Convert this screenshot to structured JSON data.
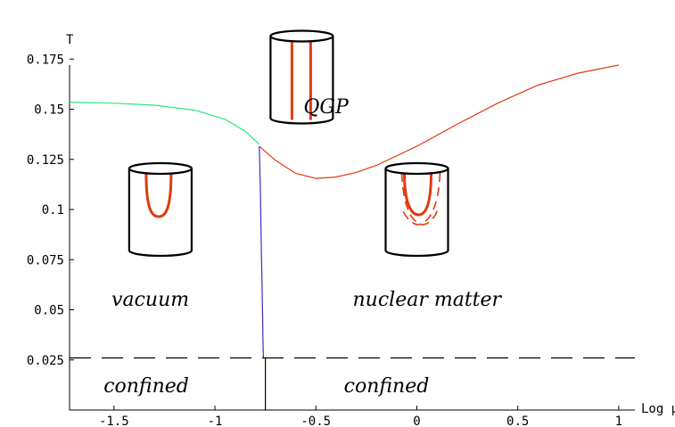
{
  "chart_data": {
    "type": "line",
    "title": "",
    "xlabel": "Log μ",
    "ylabel": "T",
    "xlim": [
      -1.72,
      1.08
    ],
    "ylim": [
      0.0,
      0.18
    ],
    "axis_origin": {
      "x": -1.72,
      "y": 0.025
    },
    "grid": false,
    "x_ticks": [
      {
        "value": -1.5,
        "label": "-1.5"
      },
      {
        "value": -1,
        "label": "-1"
      },
      {
        "value": -0.5,
        "label": "-0.5"
      },
      {
        "value": 0,
        "label": "0"
      },
      {
        "value": 0.5,
        "label": "0.5"
      },
      {
        "value": 1,
        "label": "1"
      }
    ],
    "y_ticks": [
      {
        "value": 0.025,
        "label": "0.025"
      },
      {
        "value": 0.05,
        "label": "0.05"
      },
      {
        "value": 0.075,
        "label": "0.075"
      },
      {
        "value": 0.1,
        "label": "0.1"
      },
      {
        "value": 0.125,
        "label": "0.125"
      },
      {
        "value": 0.15,
        "label": "0.15"
      },
      {
        "value": 0.175,
        "label": "0.175"
      }
    ],
    "series": [
      {
        "color": "#2ee87a",
        "x": [
          -1.72,
          -1.5,
          -1.3,
          -1.1,
          -0.95,
          -0.85,
          -0.78
        ],
        "y": [
          0.1535,
          0.153,
          0.152,
          0.1495,
          0.145,
          0.139,
          0.1325
        ]
      },
      {
        "color": "#e23a10",
        "x": [
          -0.78,
          -0.7,
          -0.6,
          -0.5,
          -0.4,
          -0.3,
          -0.2,
          0.0,
          0.2,
          0.4,
          0.6,
          0.8,
          1.0
        ],
        "y": [
          0.1315,
          0.1245,
          0.118,
          0.1155,
          0.1162,
          0.1185,
          0.122,
          0.1315,
          0.1425,
          0.153,
          0.162,
          0.168,
          0.172
        ]
      },
      {
        "color": "#3a2fc8",
        "x": [
          -0.78,
          -0.775,
          -0.77,
          -0.765,
          -0.762,
          -0.76
        ],
        "y": [
          0.1315,
          0.11,
          0.08,
          0.055,
          0.035,
          0.026
        ]
      },
      {
        "color": "#000000",
        "style": "dashed",
        "x": [
          -1.72,
          1.08
        ],
        "y": [
          0.026,
          0.026
        ]
      },
      {
        "color": "#000000",
        "x": [
          -0.75,
          -0.75
        ],
        "y": [
          0.0,
          0.026
        ]
      }
    ],
    "annotations": [
      {
        "text": "QGP",
        "x": -0.45,
        "y": 0.148
      },
      {
        "text": "vacuum",
        "x": -1.32,
        "y": 0.052
      },
      {
        "text": "nuclear matter",
        "x": 0.05,
        "y": 0.052
      },
      {
        "text": "confined",
        "x": -1.34,
        "y": 0.009
      },
      {
        "text": "confined",
        "x": -0.15,
        "y": 0.009
      }
    ],
    "icons": [
      {
        "name": "qgp-cylinder-icon",
        "x": -0.57,
        "y": 0.166
      },
      {
        "name": "vacuum-cylinder-icon",
        "x": -1.27,
        "y": 0.1
      },
      {
        "name": "nuclear-matter-cylinder-icon",
        "x": 0.0,
        "y": 0.1
      }
    ]
  }
}
